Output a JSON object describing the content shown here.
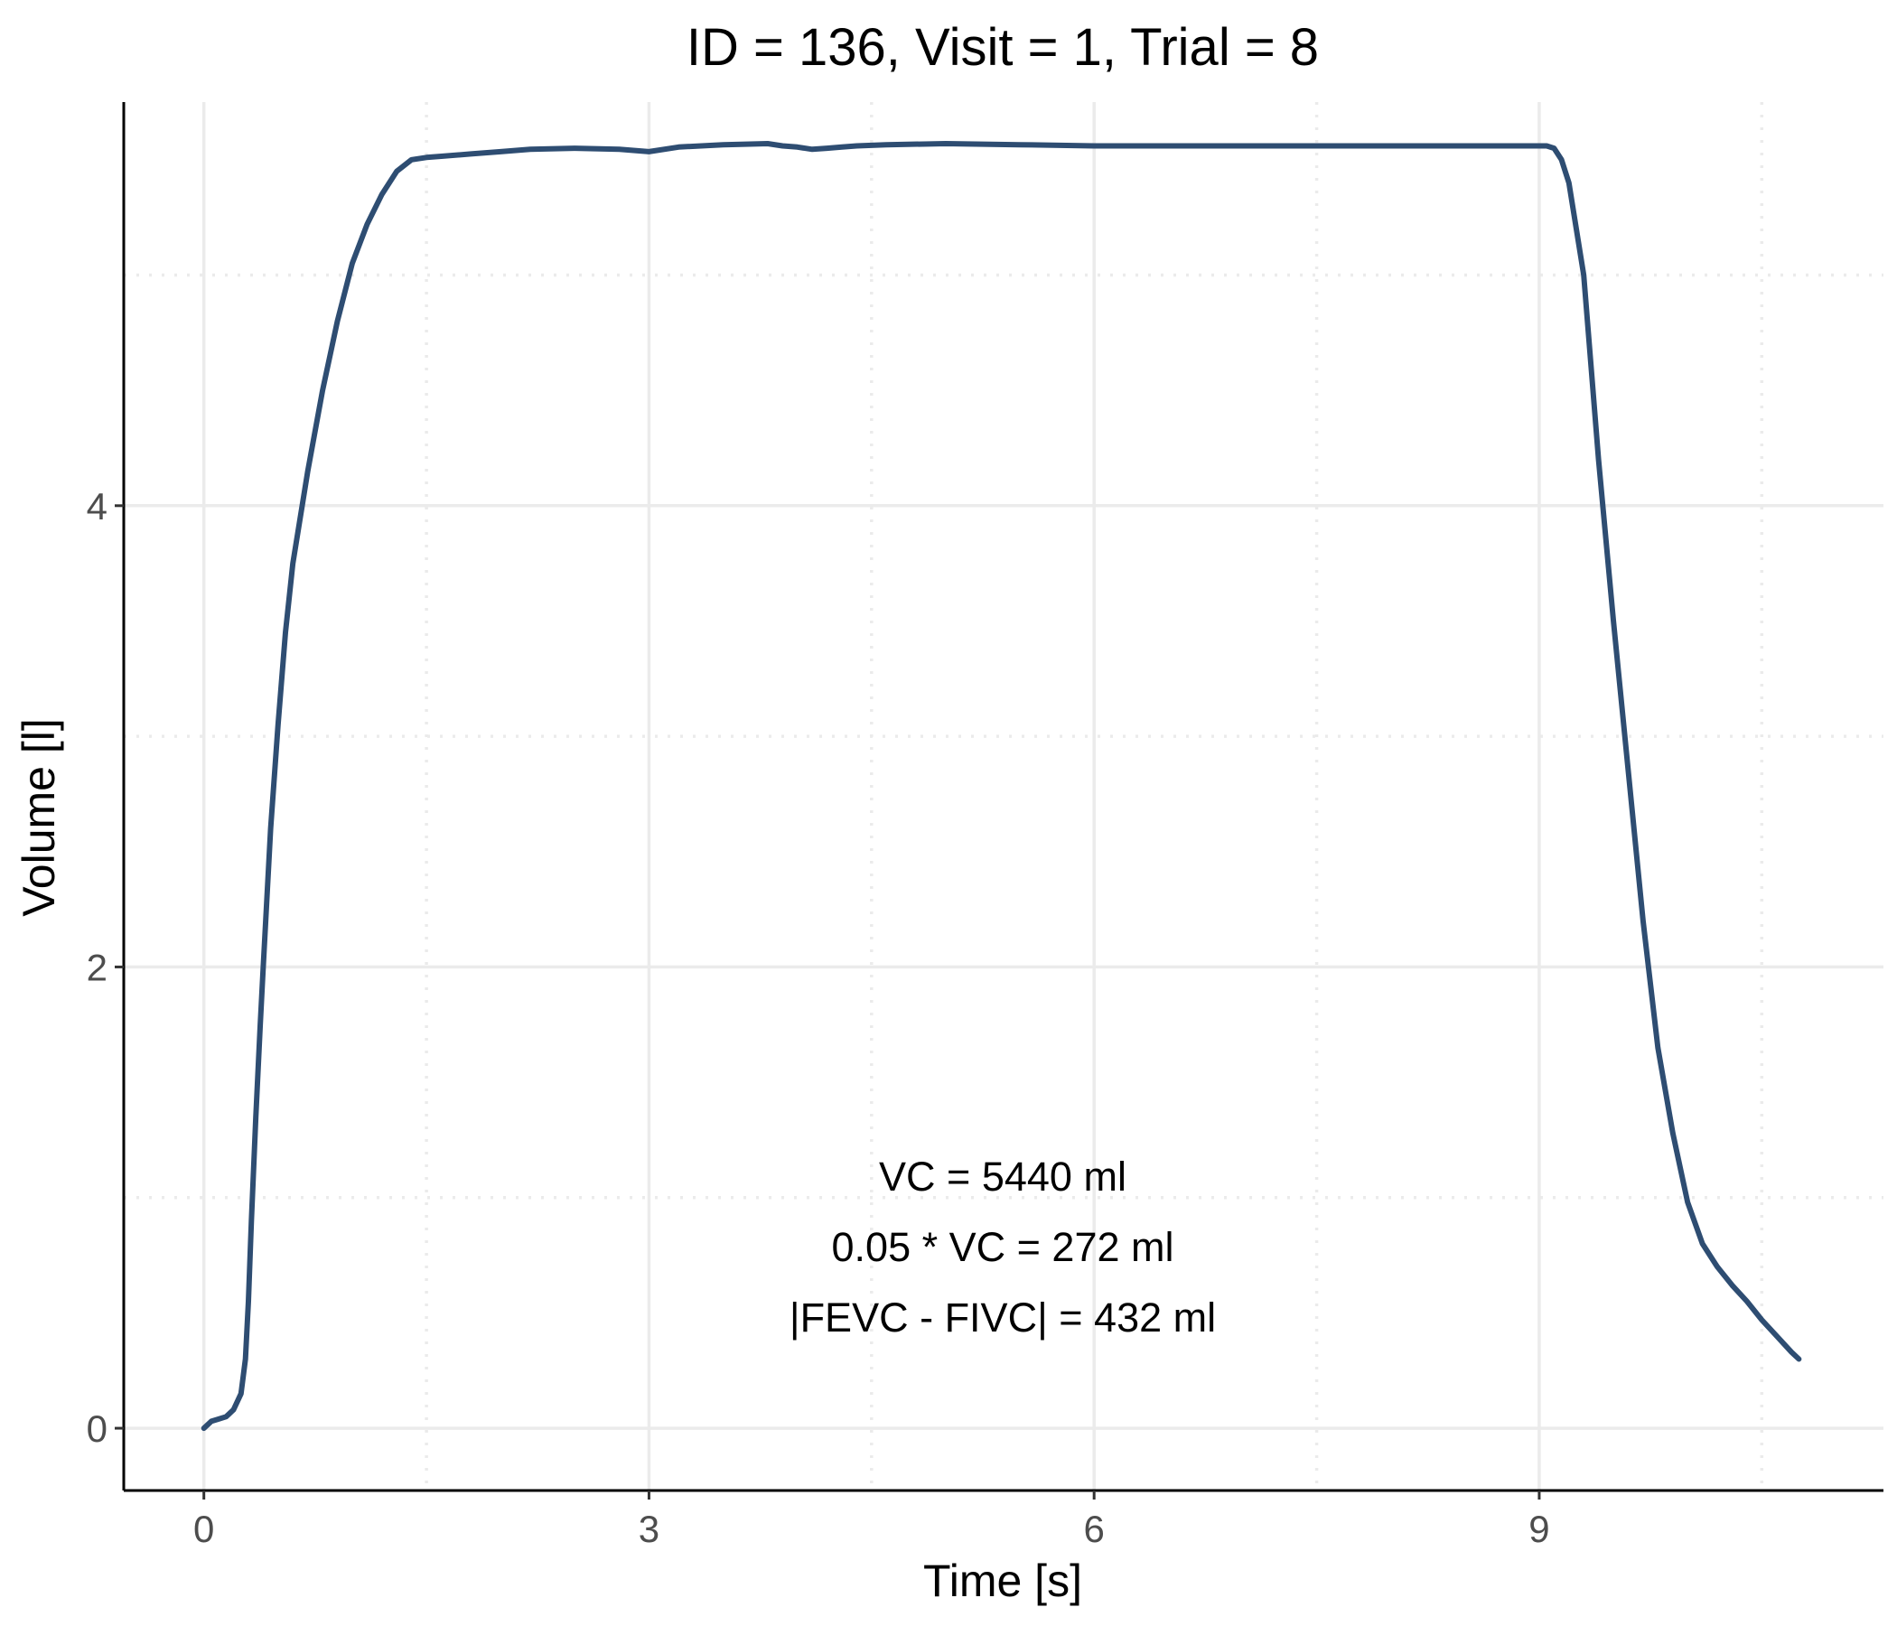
{
  "chart_data": {
    "type": "line",
    "title": "ID = 136, Visit = 1, Trial = 8",
    "xlabel": "Time [s]",
    "ylabel": "Volume [l]",
    "xlim": [
      -0.54,
      11.32
    ],
    "ylim": [
      -0.27,
      5.75
    ],
    "x_ticks": [
      0,
      3,
      6,
      9
    ],
    "x_tick_labels": [
      "0",
      "3",
      "6",
      "9"
    ],
    "y_ticks": [
      0,
      2,
      4
    ],
    "y_tick_labels": [
      "0",
      "2",
      "4"
    ],
    "x_minor_grid": [
      1.5,
      4.5,
      7.5,
      10.5
    ],
    "y_minor_grid": [
      1,
      3,
      5
    ],
    "grid": true,
    "line_color": "#2e4d72",
    "annotations": [
      "VC = 5440 ml",
      "0.05 * VC = 272 ml",
      "|FEVC - FIVC| = 432 ml"
    ],
    "series": [
      {
        "x": [
          0.0,
          0.05,
          0.1,
          0.15,
          0.2,
          0.25,
          0.28,
          0.3,
          0.32,
          0.35,
          0.38,
          0.4,
          0.45,
          0.5,
          0.55,
          0.6,
          0.7,
          0.8,
          0.9,
          1.0,
          1.1,
          1.2,
          1.3,
          1.4,
          1.5,
          1.6,
          1.8,
          2.0,
          2.2,
          2.5,
          2.8,
          3.0,
          3.2,
          3.5,
          3.8,
          3.9,
          4.0,
          4.1,
          4.2,
          4.3,
          4.4,
          4.6,
          5.0,
          5.5,
          6.0,
          6.5,
          7.0,
          7.5,
          8.0,
          8.5,
          9.0,
          9.05,
          9.1,
          9.15,
          9.2,
          9.3,
          9.4,
          9.5,
          9.6,
          9.7,
          9.8,
          9.9,
          10.0,
          10.1,
          10.2,
          10.3,
          10.4,
          10.5,
          10.6,
          10.7,
          10.75
        ],
        "y": [
          0.0,
          0.03,
          0.04,
          0.05,
          0.08,
          0.15,
          0.3,
          0.55,
          0.9,
          1.35,
          1.75,
          2.0,
          2.6,
          3.05,
          3.45,
          3.75,
          4.15,
          4.5,
          4.8,
          5.05,
          5.22,
          5.35,
          5.45,
          5.5,
          5.51,
          5.515,
          5.525,
          5.535,
          5.545,
          5.55,
          5.545,
          5.535,
          5.555,
          5.565,
          5.57,
          5.56,
          5.555,
          5.545,
          5.55,
          5.555,
          5.56,
          5.565,
          5.57,
          5.565,
          5.56,
          5.56,
          5.56,
          5.56,
          5.56,
          5.56,
          5.56,
          5.56,
          5.55,
          5.5,
          5.4,
          5.0,
          4.2,
          3.5,
          2.85,
          2.2,
          1.65,
          1.28,
          0.98,
          0.8,
          0.7,
          0.62,
          0.55,
          0.47,
          0.4,
          0.33,
          0.3
        ]
      }
    ]
  }
}
